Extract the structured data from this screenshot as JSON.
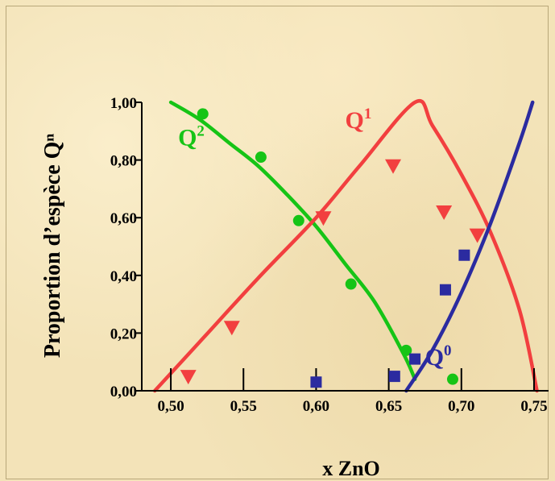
{
  "chart_data": {
    "type": "scatter",
    "xlabel": "x ZnO",
    "ylabel": "Proportion d’espèce Qⁿ",
    "xlim": [
      0.48,
      0.76
    ],
    "ylim": [
      0.0,
      1.0
    ],
    "x_ticks": [
      "0,50",
      "0,55",
      "0,60",
      "0,65",
      "0,70",
      "0,75"
    ],
    "x_tick_values": [
      0.5,
      0.55,
      0.6,
      0.65,
      0.7,
      0.75
    ],
    "y_ticks": [
      "0,00",
      "0,20",
      "0,40",
      "0,60",
      "0,80",
      "1,00"
    ],
    "y_tick_values": [
      0.0,
      0.2,
      0.4,
      0.6,
      0.8,
      1.0
    ],
    "grid": false,
    "series": [
      {
        "name": "Q2",
        "label_base": "Q",
        "label_sup": "2",
        "color": "#16c416",
        "marker": "circle",
        "points": [
          [
            0.522,
            0.96
          ],
          [
            0.562,
            0.81
          ],
          [
            0.588,
            0.59
          ],
          [
            0.624,
            0.37
          ],
          [
            0.662,
            0.14
          ],
          [
            0.694,
            0.04
          ]
        ],
        "curve": [
          [
            0.5,
            1.0
          ],
          [
            0.52,
            0.94
          ],
          [
            0.54,
            0.86
          ],
          [
            0.56,
            0.78
          ],
          [
            0.58,
            0.68
          ],
          [
            0.6,
            0.57
          ],
          [
            0.62,
            0.44
          ],
          [
            0.64,
            0.31
          ],
          [
            0.66,
            0.13
          ],
          [
            0.668,
            0.04
          ]
        ]
      },
      {
        "name": "Q1",
        "label_base": "Q",
        "label_sup": "1",
        "color": "#f23f3f",
        "marker": "triangle-down",
        "points": [
          [
            0.512,
            0.05
          ],
          [
            0.542,
            0.22
          ],
          [
            0.605,
            0.6
          ],
          [
            0.653,
            0.78
          ],
          [
            0.688,
            0.62
          ],
          [
            0.711,
            0.54
          ]
        ],
        "curve": [
          [
            0.489,
            0.0
          ],
          [
            0.52,
            0.17
          ],
          [
            0.56,
            0.39
          ],
          [
            0.6,
            0.6
          ],
          [
            0.63,
            0.78
          ],
          [
            0.668,
            1.0
          ],
          [
            0.68,
            0.92
          ],
          [
            0.7,
            0.75
          ],
          [
            0.72,
            0.55
          ],
          [
            0.74,
            0.28
          ],
          [
            0.752,
            0.0
          ]
        ]
      },
      {
        "name": "Q0",
        "label_base": "Q",
        "label_sup": "0",
        "color": "#2b2ba0",
        "marker": "square",
        "points": [
          [
            0.6,
            0.03
          ],
          [
            0.654,
            0.05
          ],
          [
            0.668,
            0.11
          ],
          [
            0.689,
            0.35
          ],
          [
            0.702,
            0.47
          ]
        ],
        "curve": [
          [
            0.662,
            0.0
          ],
          [
            0.68,
            0.14
          ],
          [
            0.7,
            0.34
          ],
          [
            0.72,
            0.58
          ],
          [
            0.74,
            0.86
          ],
          [
            0.749,
            1.0
          ]
        ]
      }
    ],
    "labels": [
      {
        "series": "Q2",
        "x": 0.505,
        "y": 0.85
      },
      {
        "series": "Q1",
        "x": 0.62,
        "y": 0.91
      },
      {
        "series": "Q0",
        "x": 0.675,
        "y": 0.09
      }
    ]
  }
}
